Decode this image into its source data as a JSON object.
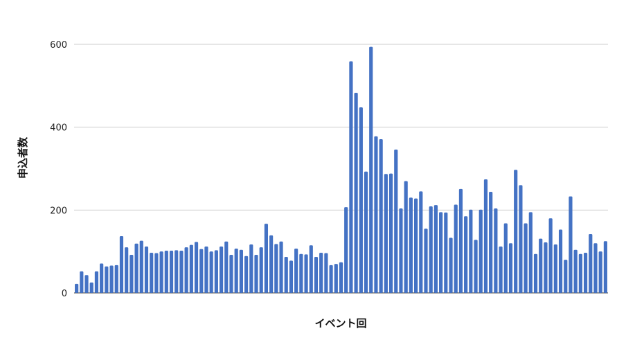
{
  "chart_data": {
    "type": "bar",
    "xlabel": "イベント回",
    "ylabel": "申込者数",
    "ylim": [
      0,
      600
    ],
    "yticks": [
      0,
      200,
      400,
      600
    ],
    "grid": true,
    "bar_color": "#4472C4",
    "values": [
      22,
      52,
      43,
      25,
      52,
      71,
      64,
      66,
      67,
      137,
      110,
      92,
      119,
      126,
      112,
      97,
      96,
      100,
      102,
      102,
      103,
      102,
      110,
      116,
      123,
      106,
      112,
      100,
      103,
      112,
      124,
      92,
      107,
      104,
      89,
      117,
      92,
      110,
      167,
      139,
      118,
      124,
      87,
      78,
      107,
      94,
      93,
      115,
      87,
      97,
      96,
      67,
      70,
      74,
      207,
      559,
      483,
      448,
      293,
      594,
      378,
      371,
      287,
      288,
      346,
      204,
      270,
      230,
      228,
      245,
      155,
      209,
      212,
      195,
      194,
      133,
      213,
      251,
      185,
      201,
      128,
      201,
      274,
      244,
      204,
      112,
      168,
      120,
      297,
      260,
      168,
      195,
      94,
      131,
      122,
      180,
      117,
      153,
      80,
      233,
      104,
      94,
      97,
      142,
      120,
      100,
      125
    ]
  }
}
